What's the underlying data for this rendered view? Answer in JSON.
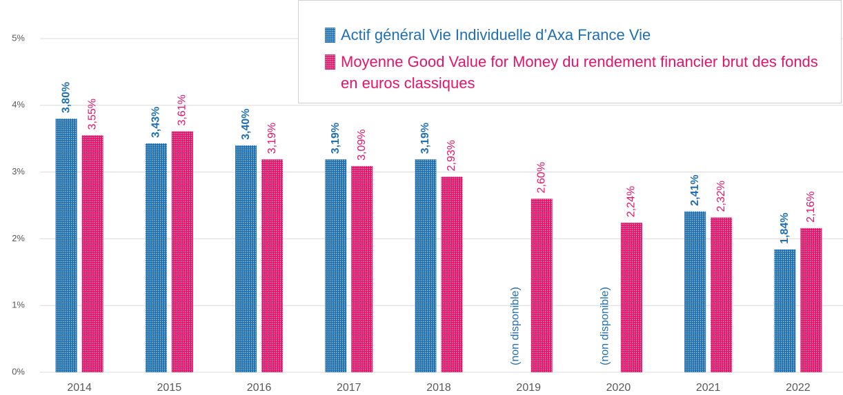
{
  "chart_data": {
    "type": "bar",
    "categories": [
      "2014",
      "2015",
      "2016",
      "2017",
      "2018",
      "2019",
      "2020",
      "2021",
      "2022"
    ],
    "series": [
      {
        "name": "Actif général Vie Individuelle d’Axa France Vie",
        "color": "#1f6fb4",
        "values": [
          3.8,
          3.43,
          3.4,
          3.19,
          3.19,
          null,
          null,
          2.41,
          1.84
        ],
        "value_labels": [
          "3,80%",
          "3,43%",
          "3,40%",
          "3,19%",
          "3,19%",
          "(non disponible)",
          "(non disponible)",
          "2,41%",
          "1,84%"
        ]
      },
      {
        "name": "Moyenne Good Value for Money du rendement financier brut des fonds en euros classiques",
        "color": "#e5136a",
        "values": [
          3.55,
          3.61,
          3.19,
          3.09,
          2.93,
          2.6,
          2.24,
          2.32,
          2.16
        ],
        "value_labels": [
          "3,55%",
          "3,61%",
          "3,19%",
          "3,09%",
          "2,93%",
          "2,60%",
          "2,24%",
          "2,32%",
          "2,16%"
        ]
      }
    ],
    "ylim": [
      0,
      5
    ],
    "yticks": [
      {
        "value": 0,
        "label": "0%"
      },
      {
        "value": 1,
        "label": "1%"
      },
      {
        "value": 2,
        "label": "2%"
      },
      {
        "value": 3,
        "label": "3%"
      },
      {
        "value": 4,
        "label": "4%"
      },
      {
        "value": 5,
        "label": "5%"
      }
    ],
    "grid": true,
    "legend": "upper right"
  }
}
